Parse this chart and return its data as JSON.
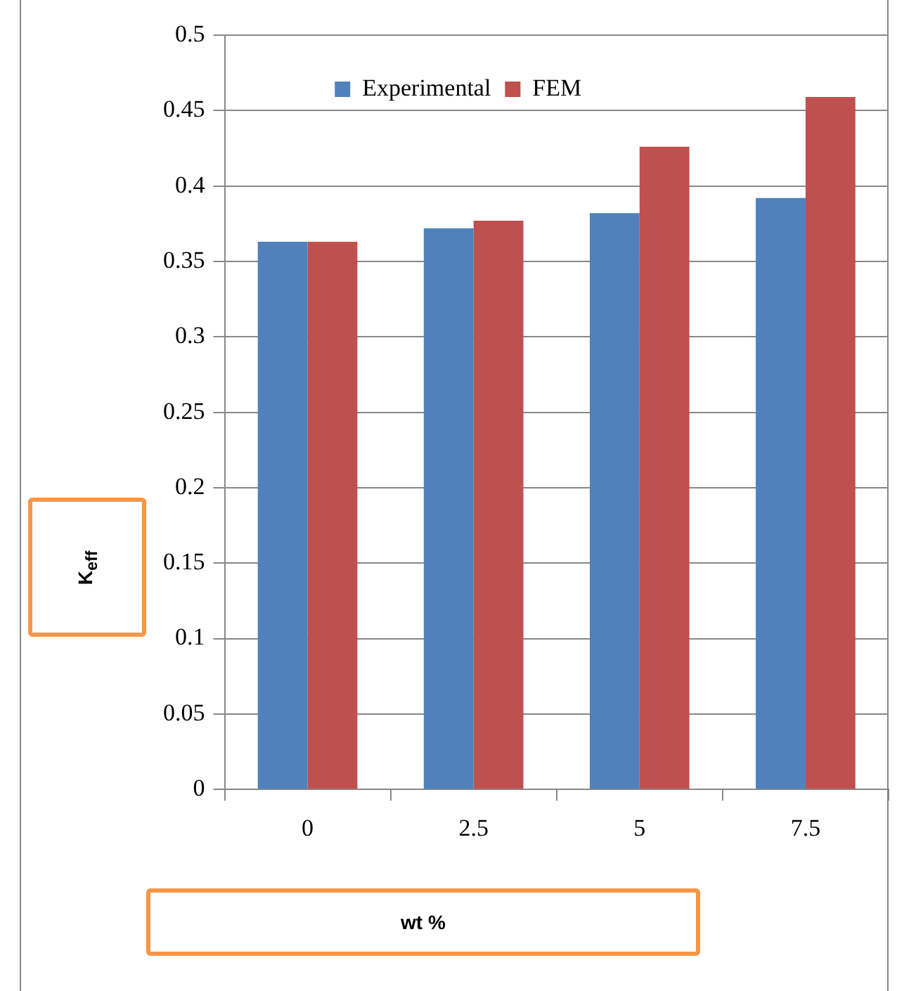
{
  "chart_data": {
    "type": "bar",
    "xlabel": "wt %",
    "ylabel": "K$_{eff}$",
    "categories": [
      "0",
      "2.5",
      "5",
      "7.5"
    ],
    "series": [
      {
        "name": "Experimental",
        "color": "#4f81bd",
        "values": [
          0.363,
          0.372,
          0.382,
          0.392
        ]
      },
      {
        "name": "FEM",
        "color": "#c0504d",
        "values": [
          0.363,
          0.377,
          0.426,
          0.459
        ]
      }
    ],
    "ylim": [
      0,
      0.5
    ],
    "yticks": [
      0,
      0.05,
      0.1,
      0.15,
      0.2,
      0.25,
      0.3,
      0.35,
      0.4,
      0.45,
      0.5
    ],
    "grid": "y",
    "legend": "top"
  }
}
